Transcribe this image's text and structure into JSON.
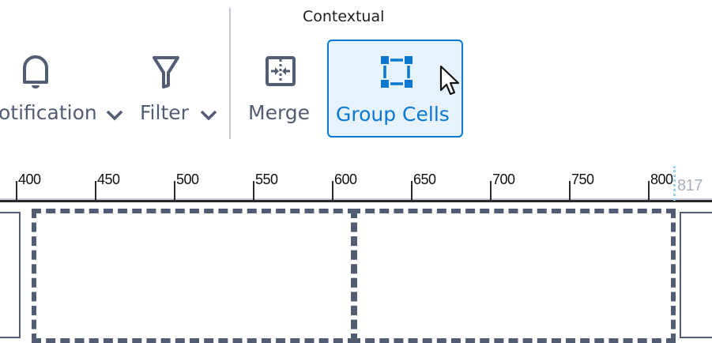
{
  "ribbon": {
    "group_title": "Contextual",
    "notification": {
      "label": "otification",
      "icon": "bell-icon"
    },
    "filter": {
      "label": "Filter",
      "icon": "filter-icon"
    },
    "merge": {
      "label": "Merge",
      "icon": "merge-icon"
    },
    "group_cells": {
      "label": "Group Cells",
      "icon": "group-cells-icon",
      "state": "hovered"
    }
  },
  "ruler": {
    "ticks": [
      "400",
      "450",
      "500",
      "550",
      "600",
      "650",
      "700",
      "750",
      "800"
    ],
    "marker": "817"
  },
  "colors": {
    "accent": "#0a78d1",
    "icon": "#525d73",
    "hover_bg": "#e6f3fc"
  }
}
